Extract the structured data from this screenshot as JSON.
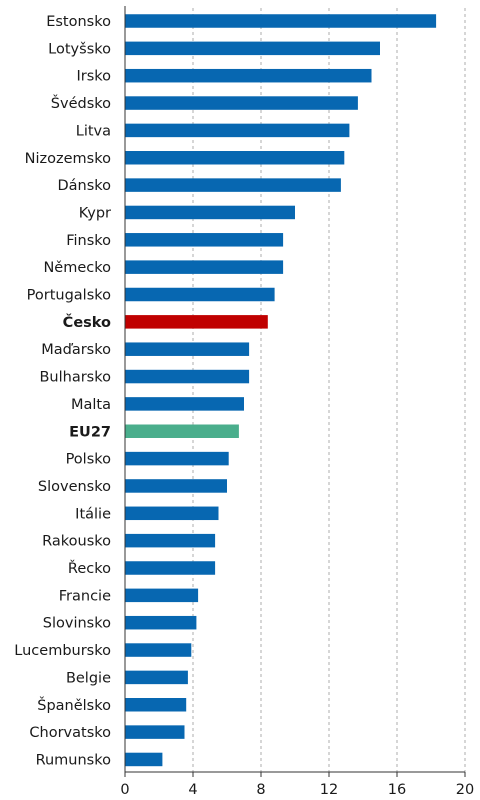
{
  "chart_data": {
    "type": "bar",
    "orientation": "horizontal",
    "title": "",
    "xlabel": "",
    "ylabel": "",
    "xlim": [
      0,
      20
    ],
    "xticks": [
      0,
      4,
      8,
      12,
      16,
      20
    ],
    "grid": true,
    "legend": "none",
    "categories": [
      "Estonsko",
      "Lotyšsko",
      "Irsko",
      "Švédsko",
      "Litva",
      "Nizozemsko",
      "Dánsko",
      "Kypr",
      "Finsko",
      "Německo",
      "Portugalsko",
      "Česko",
      "Maďarsko",
      "Bulharsko",
      "Malta",
      "EU27",
      "Polsko",
      "Slovensko",
      "Itálie",
      "Rakousko",
      "Řecko",
      "Francie",
      "Slovinsko",
      "Lucembursko",
      "Belgie",
      "Španělsko",
      "Chorvatsko",
      "Rumunsko"
    ],
    "values": [
      18.3,
      15.0,
      14.5,
      13.7,
      13.2,
      12.9,
      12.7,
      10.0,
      9.3,
      9.3,
      8.8,
      8.4,
      7.3,
      7.3,
      7.0,
      6.7,
      6.1,
      6.0,
      5.5,
      5.3,
      5.3,
      4.3,
      4.2,
      3.9,
      3.7,
      3.6,
      3.5,
      2.2
    ],
    "highlight": {
      "Česko": "#c00000",
      "EU27": "#4aae8c"
    },
    "bold_categories": [
      "Česko",
      "EU27"
    ],
    "colors": {
      "default": "#0767b1",
      "highlight_cesko": "#c00000",
      "highlight_eu27": "#4aae8c"
    }
  }
}
